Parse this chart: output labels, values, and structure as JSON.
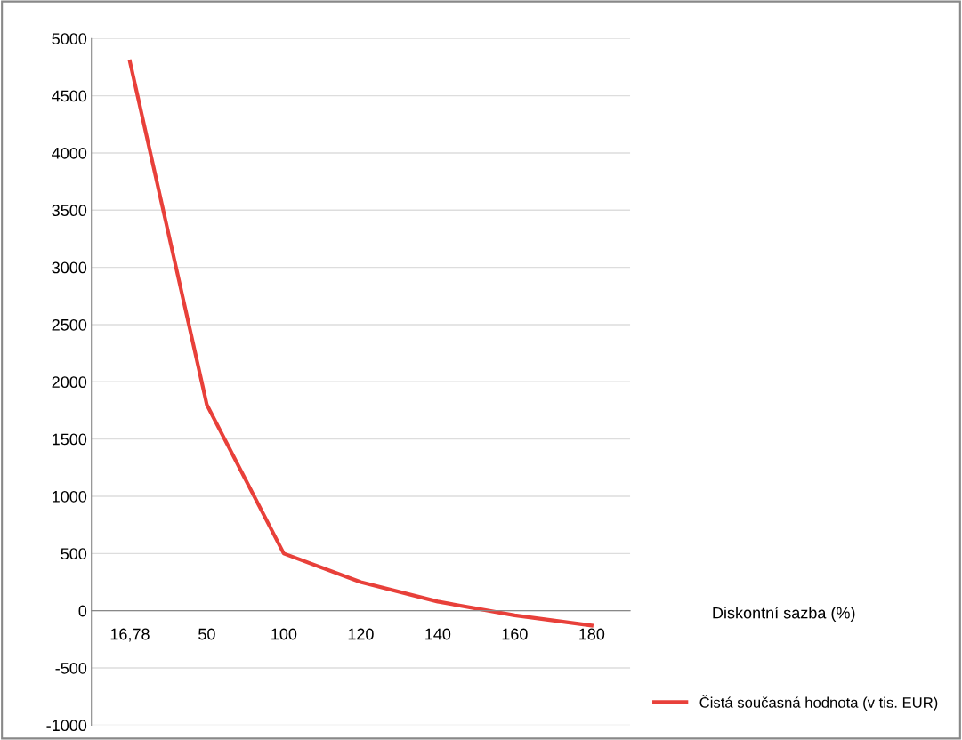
{
  "chart_data": {
    "type": "line",
    "annotations": [
      "Diskontní sazba (%)"
    ],
    "categories": [
      "16,78",
      "50",
      "100",
      "120",
      "140",
      "160",
      "180"
    ],
    "series": [
      {
        "name": "Čistá současná hodnota (v tis. EUR)",
        "color": "#e8403a",
        "values": [
          4800,
          1800,
          500,
          250,
          80,
          -40,
          -130
        ]
      }
    ],
    "ylim": [
      -1000,
      5000
    ],
    "yticks": [
      -1000,
      -500,
      0,
      500,
      1000,
      1500,
      2000,
      2500,
      3000,
      3500,
      4000,
      4500,
      5000
    ],
    "grid": "y",
    "legend": "right",
    "marker": "none",
    "line_style": "solid"
  }
}
